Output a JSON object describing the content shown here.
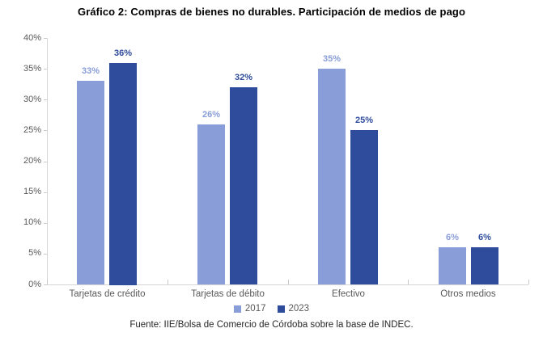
{
  "title": "Gráfico 2: Compras de bienes no durables. Participación de medios de pago",
  "source": "Fuente: IIE/Bolsa de Comercio de Córdoba sobre la base de INDEC.",
  "chart_data": {
    "type": "bar",
    "title": "Gráfico 2: Compras de bienes no durables. Participación de medios de pago",
    "categories": [
      "Tarjetas de crédito",
      "Tarjetas de débito",
      "Efectivo",
      "Otros medios"
    ],
    "series": [
      {
        "name": "2017",
        "color": "#899DD8",
        "values": [
          33,
          26,
          35,
          6
        ],
        "labels": [
          "33%",
          "26%",
          "35%",
          "6%"
        ]
      },
      {
        "name": "2023",
        "color": "#2E4C9B",
        "values": [
          36,
          32,
          25,
          6
        ],
        "labels": [
          "36%",
          "32%",
          "25%",
          "6%"
        ]
      }
    ],
    "xlabel": "",
    "ylabel": "",
    "ylim": [
      0,
      40
    ],
    "y_tick_step": 5,
    "y_tick_labels": [
      "0%",
      "5%",
      "10%",
      "15%",
      "20%",
      "25%",
      "30%",
      "35%",
      "40%"
    ],
    "grid": false,
    "legend_position": "bottom"
  },
  "colors": {
    "series_2017": "#899DD8",
    "series_2023": "#2E4C9B",
    "axis_line": "#D6D6D6",
    "axis_text": "#595959",
    "title_text": "#000000",
    "source_text": "#262626",
    "background": "#FFFFFF"
  }
}
